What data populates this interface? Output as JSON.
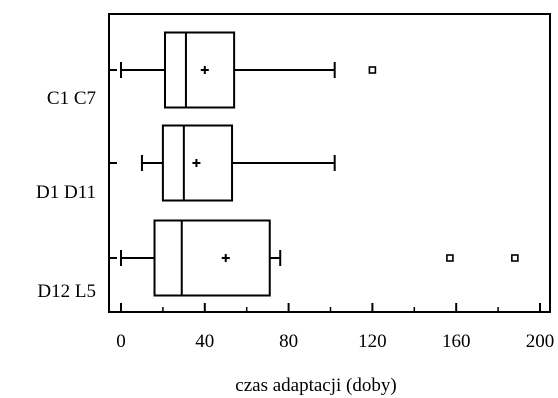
{
  "chart_data": {
    "type": "boxplot",
    "orientation": "horizontal",
    "xlabel": "czas adaptacji (doby)",
    "ylabel": "",
    "xlim": [
      -5,
      203
    ],
    "xticks": [
      0,
      40,
      80,
      120,
      160,
      200
    ],
    "grid": false,
    "legend": "none",
    "categories": [
      "C1 C7",
      "D1 D11",
      "D12 L5"
    ],
    "boxes": [
      {
        "category": "C1 C7",
        "whisker_low": 0,
        "q1": 21,
        "median": 31,
        "q3": 54,
        "whisker_high": 102,
        "mean": 40,
        "outliers": [
          120
        ]
      },
      {
        "category": "D1 D11",
        "whisker_low": 10,
        "q1": 20,
        "median": 30,
        "q3": 53,
        "whisker_high": 102,
        "mean": 36,
        "outliers": []
      },
      {
        "category": "D12 L5",
        "whisker_low": 0,
        "q1": 16,
        "median": 29,
        "q3": 71,
        "whisker_high": 76,
        "mean": 50,
        "outliers": [
          157,
          188
        ]
      }
    ],
    "colors": {
      "stroke": "#000000",
      "background": "#ffffff"
    }
  }
}
